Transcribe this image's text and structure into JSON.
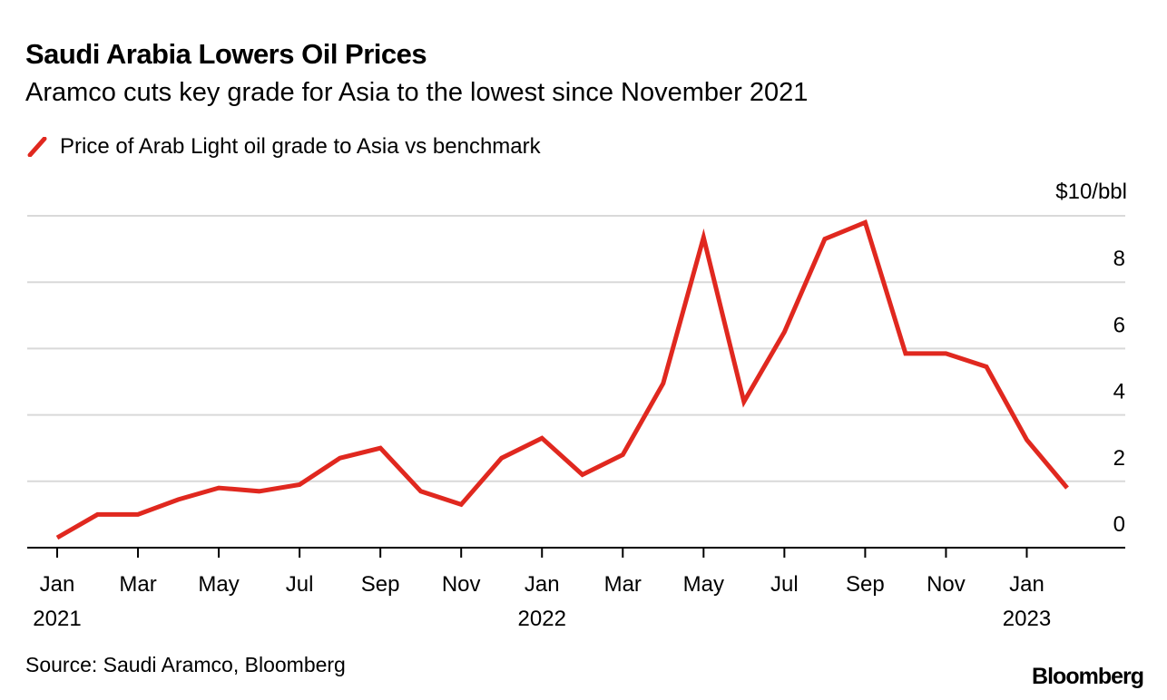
{
  "header": {
    "title": "Saudi Arabia Lowers Oil Prices",
    "subtitle": "Aramco cuts key grade for Asia to the lowest since November 2021"
  },
  "footer": {
    "source": "Source: Saudi Aramco, Bloomberg",
    "logo": "Bloomberg"
  },
  "chart_data": {
    "type": "line",
    "title": "Saudi Arabia Lowers Oil Prices",
    "ylabel": "$10/bbl",
    "ylim": [
      0,
      10
    ],
    "yticks": [
      0,
      2,
      4,
      6,
      8
    ],
    "grid": true,
    "legend_placement": "top-left",
    "x": [
      "2021-01",
      "2021-02",
      "2021-03",
      "2021-04",
      "2021-05",
      "2021-06",
      "2021-07",
      "2021-08",
      "2021-09",
      "2021-10",
      "2021-11",
      "2021-12",
      "2022-01",
      "2022-02",
      "2022-03",
      "2022-04",
      "2022-05",
      "2022-06",
      "2022-07",
      "2022-08",
      "2022-09",
      "2022-10",
      "2022-11",
      "2022-12",
      "2023-01",
      "2023-02"
    ],
    "xtick_labels": [
      {
        "month_index": 0,
        "label": "Jan",
        "year": "2021"
      },
      {
        "month_index": 2,
        "label": "Mar"
      },
      {
        "month_index": 4,
        "label": "May"
      },
      {
        "month_index": 6,
        "label": "Jul"
      },
      {
        "month_index": 8,
        "label": "Sep"
      },
      {
        "month_index": 10,
        "label": "Nov"
      },
      {
        "month_index": 12,
        "label": "Jan",
        "year": "2022"
      },
      {
        "month_index": 14,
        "label": "Mar"
      },
      {
        "month_index": 16,
        "label": "May"
      },
      {
        "month_index": 18,
        "label": "Jul"
      },
      {
        "month_index": 20,
        "label": "Sep"
      },
      {
        "month_index": 22,
        "label": "Nov"
      },
      {
        "month_index": 24,
        "label": "Jan",
        "year": "2023"
      }
    ],
    "series": [
      {
        "name": "Price of Arab Light oil grade to Asia vs benchmark",
        "color": "#e0281f",
        "values": [
          0.3,
          1.0,
          1.0,
          1.45,
          1.8,
          1.7,
          1.9,
          2.7,
          3.0,
          1.7,
          1.3,
          2.7,
          3.3,
          2.2,
          2.8,
          4.95,
          9.35,
          4.4,
          6.5,
          9.3,
          9.8,
          5.85,
          5.85,
          5.45,
          3.25,
          1.8
        ]
      }
    ]
  }
}
